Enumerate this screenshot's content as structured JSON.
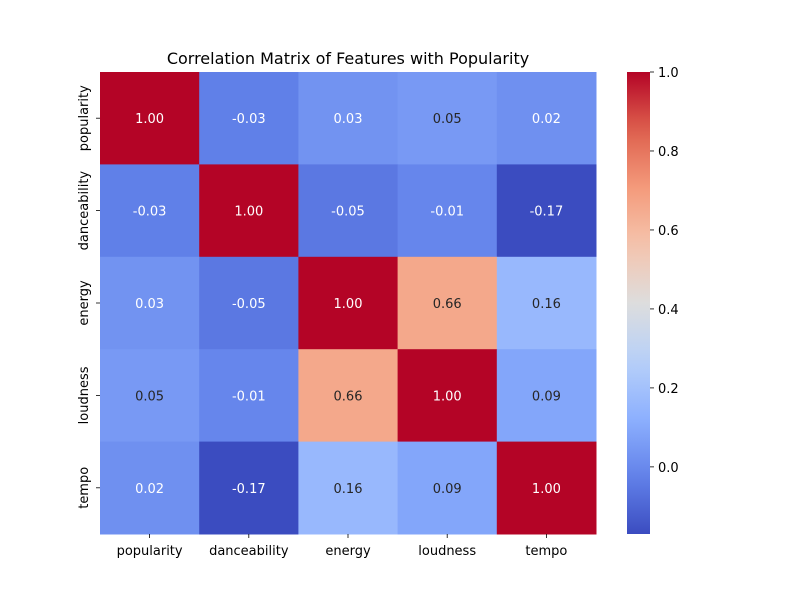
{
  "chart_data": {
    "type": "heatmap",
    "title": "Correlation Matrix of Features with Popularity",
    "xlabel": "",
    "ylabel": "",
    "x_categories": [
      "popularity",
      "danceability",
      "energy",
      "loudness",
      "tempo"
    ],
    "y_categories": [
      "popularity",
      "danceability",
      "energy",
      "loudness",
      "tempo"
    ],
    "values": [
      [
        1.0,
        -0.03,
        0.03,
        0.05,
        0.02
      ],
      [
        -0.03,
        1.0,
        -0.05,
        -0.01,
        -0.17
      ],
      [
        0.03,
        -0.05,
        1.0,
        0.66,
        0.16
      ],
      [
        0.05,
        -0.01,
        0.66,
        1.0,
        0.09
      ],
      [
        0.02,
        -0.17,
        0.16,
        0.09,
        1.0
      ]
    ],
    "value_format": "0.00",
    "colormap": "coolwarm",
    "vmin": -0.17,
    "vmax": 1.0,
    "colorbar": {
      "ticks": [
        0.0,
        0.2,
        0.4,
        0.6,
        0.8,
        1.0
      ],
      "tick_labels": [
        "0.0",
        "0.2",
        "0.4",
        "0.6",
        "0.8",
        "1.0"
      ]
    },
    "grid": false
  }
}
